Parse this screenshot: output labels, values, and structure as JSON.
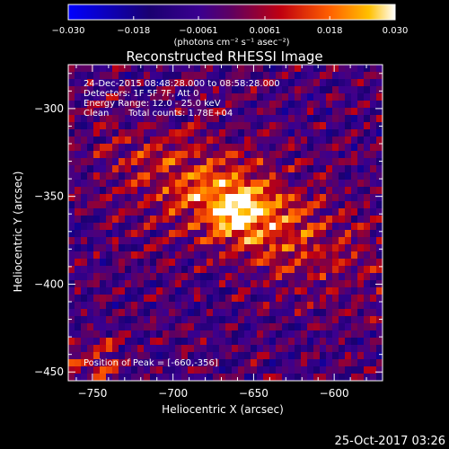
{
  "chart_data": {
    "type": "heatmap",
    "title": "Reconstructed RHESSI Image",
    "xlabel": "Heliocentric X (arcsec)",
    "ylabel": "Heliocentric Y (arcsec)",
    "xlim": [
      -765,
      -570
    ],
    "ylim": [
      -455,
      -275
    ],
    "x_ticks": [
      -750,
      -700,
      -650,
      -600
    ],
    "y_ticks": [
      -450,
      -400,
      -350,
      -300
    ],
    "colorbar": {
      "min": -0.03,
      "max": 0.03,
      "ticks": [
        -0.03,
        -0.018,
        -0.0061,
        0.0061,
        0.018,
        0.03
      ],
      "tick_labels": [
        "-0.030",
        "-0.018",
        "-0.0061",
        "0.0061",
        "0.018",
        "0.030"
      ],
      "unit_label": "(photons cm⁻² s⁻¹ asec⁻²)"
    },
    "peak": {
      "x": -660,
      "y": -356
    },
    "grid": false
  },
  "annotations": {
    "time_range": "24-Dec-2015 08:48:28.000 to 08:58:28.000",
    "detectors": "Detectors: 1F 5F 7F, Att 0",
    "energy": "Energy Range: 12.0 - 25.0 keV",
    "method": "Clean",
    "counts": "Total counts: 1.78E+04",
    "peak_label": "Position of Peak = [-660,-356]"
  },
  "footer": {
    "timestamp": "25-Oct-2017 03:26"
  }
}
